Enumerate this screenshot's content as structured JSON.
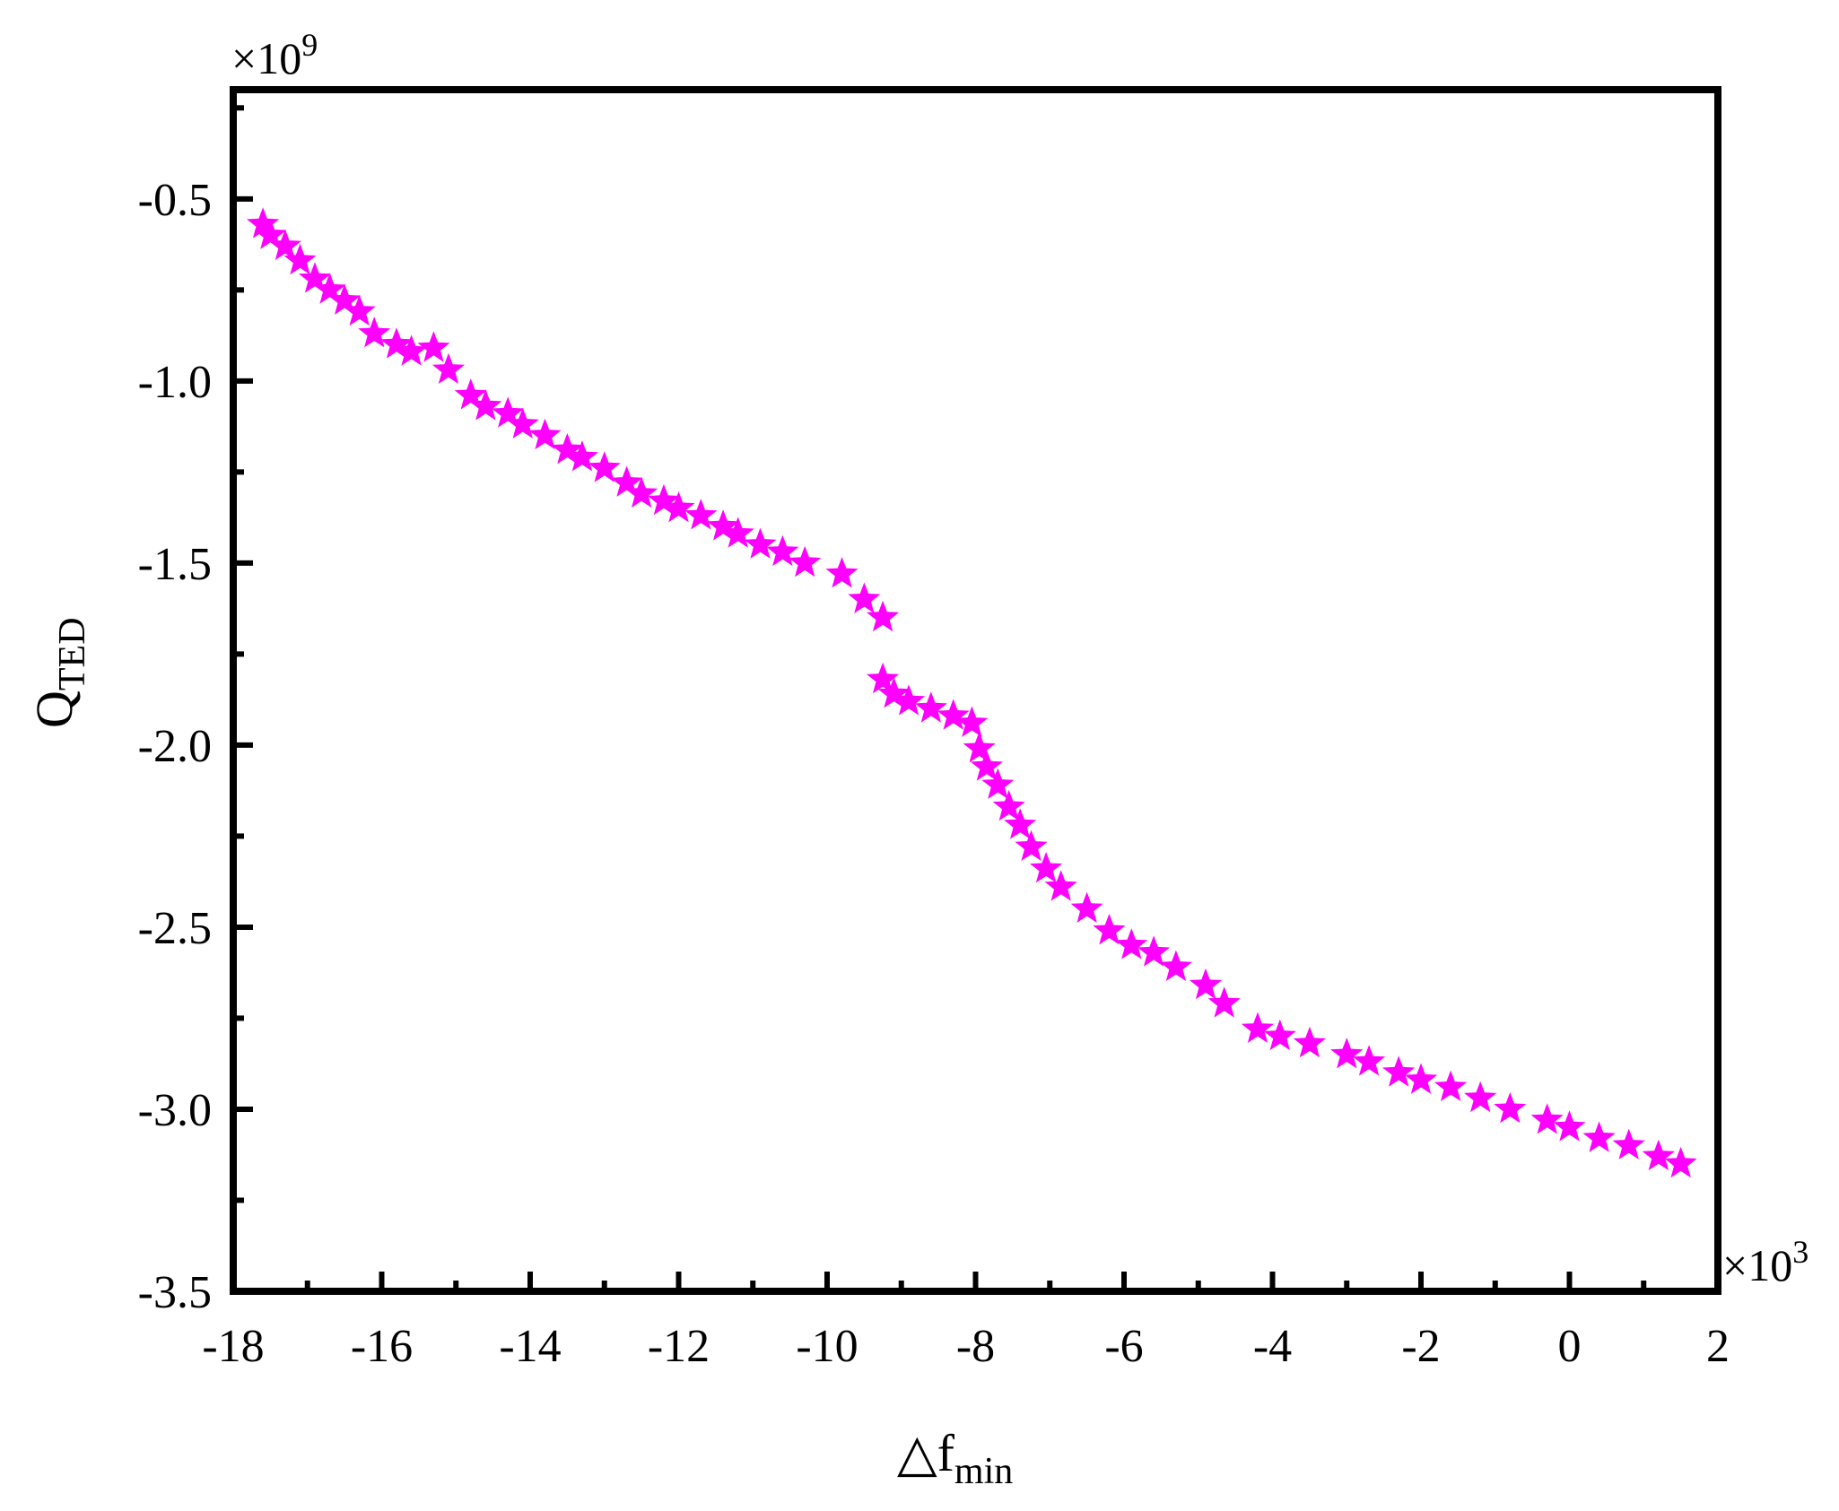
{
  "chart_data": {
    "type": "scatter",
    "title": "",
    "xlabel": {
      "main": "△f",
      "sub": "min"
    },
    "ylabel": {
      "main": "Q",
      "sub": "TED"
    },
    "x_multiplier": {
      "base": "×10",
      "exp": "3"
    },
    "y_multiplier": {
      "base": "×10",
      "exp": "9"
    },
    "xlim": [
      -18,
      2
    ],
    "ylim": [
      -3.5,
      -0.2
    ],
    "x_ticks": [
      -18,
      -16,
      -14,
      -12,
      -10,
      -8,
      -6,
      -4,
      -2,
      0,
      2
    ],
    "y_ticks": [
      -3.5,
      -3.0,
      -2.5,
      -2.0,
      -1.5,
      -1.0,
      -0.5
    ],
    "x_tick_labels": [
      "-18",
      "-16",
      "-14",
      "-12",
      "-10",
      "-8",
      "-6",
      "-4",
      "-2",
      "0",
      "2"
    ],
    "y_tick_labels": [
      "-3.5",
      "-3.0",
      "-2.5",
      "-2.0",
      "-1.5",
      "-1.0",
      "-0.5"
    ],
    "grid": false,
    "marker": "star",
    "color": "#FF00FF",
    "series": [
      {
        "points": [
          [
            -17.6,
            -0.57
          ],
          [
            -17.5,
            -0.6
          ],
          [
            -17.3,
            -0.63
          ],
          [
            -17.1,
            -0.67
          ],
          [
            -16.9,
            -0.72
          ],
          [
            -16.7,
            -0.75
          ],
          [
            -16.5,
            -0.78
          ],
          [
            -16.3,
            -0.81
          ],
          [
            -16.1,
            -0.87
          ],
          [
            -15.8,
            -0.9
          ],
          [
            -15.6,
            -0.92
          ],
          [
            -15.3,
            -0.91
          ],
          [
            -15.1,
            -0.97
          ],
          [
            -14.8,
            -1.04
          ],
          [
            -14.6,
            -1.07
          ],
          [
            -14.3,
            -1.09
          ],
          [
            -14.1,
            -1.12
          ],
          [
            -13.8,
            -1.15
          ],
          [
            -13.5,
            -1.19
          ],
          [
            -13.3,
            -1.21
          ],
          [
            -13.0,
            -1.24
          ],
          [
            -12.7,
            -1.28
          ],
          [
            -12.5,
            -1.31
          ],
          [
            -12.2,
            -1.33
          ],
          [
            -12.0,
            -1.35
          ],
          [
            -11.7,
            -1.37
          ],
          [
            -11.4,
            -1.4
          ],
          [
            -11.2,
            -1.42
          ],
          [
            -10.9,
            -1.45
          ],
          [
            -10.6,
            -1.47
          ],
          [
            -10.3,
            -1.5
          ],
          [
            -9.8,
            -1.53
          ],
          [
            -9.5,
            -1.6
          ],
          [
            -9.25,
            -1.65
          ],
          [
            -9.25,
            -1.82
          ],
          [
            -9.1,
            -1.86
          ],
          [
            -8.9,
            -1.88
          ],
          [
            -8.6,
            -1.9
          ],
          [
            -8.3,
            -1.92
          ],
          [
            -8.05,
            -1.94
          ],
          [
            -7.95,
            -2.01
          ],
          [
            -7.85,
            -2.06
          ],
          [
            -7.7,
            -2.11
          ],
          [
            -7.55,
            -2.17
          ],
          [
            -7.4,
            -2.22
          ],
          [
            -7.25,
            -2.28
          ],
          [
            -7.05,
            -2.34
          ],
          [
            -6.85,
            -2.39
          ],
          [
            -6.5,
            -2.45
          ],
          [
            -6.2,
            -2.51
          ],
          [
            -5.9,
            -2.55
          ],
          [
            -5.6,
            -2.57
          ],
          [
            -5.3,
            -2.61
          ],
          [
            -4.9,
            -2.66
          ],
          [
            -4.65,
            -2.71
          ],
          [
            -4.2,
            -2.78
          ],
          [
            -3.9,
            -2.8
          ],
          [
            -3.5,
            -2.82
          ],
          [
            -3.0,
            -2.85
          ],
          [
            -2.7,
            -2.87
          ],
          [
            -2.3,
            -2.9
          ],
          [
            -2.0,
            -2.92
          ],
          [
            -1.6,
            -2.94
          ],
          [
            -1.2,
            -2.97
          ],
          [
            -0.8,
            -3.0
          ],
          [
            -0.3,
            -3.03
          ],
          [
            0.0,
            -3.05
          ],
          [
            0.4,
            -3.08
          ],
          [
            0.8,
            -3.1
          ],
          [
            1.2,
            -3.13
          ],
          [
            1.5,
            -3.15
          ]
        ]
      }
    ]
  }
}
